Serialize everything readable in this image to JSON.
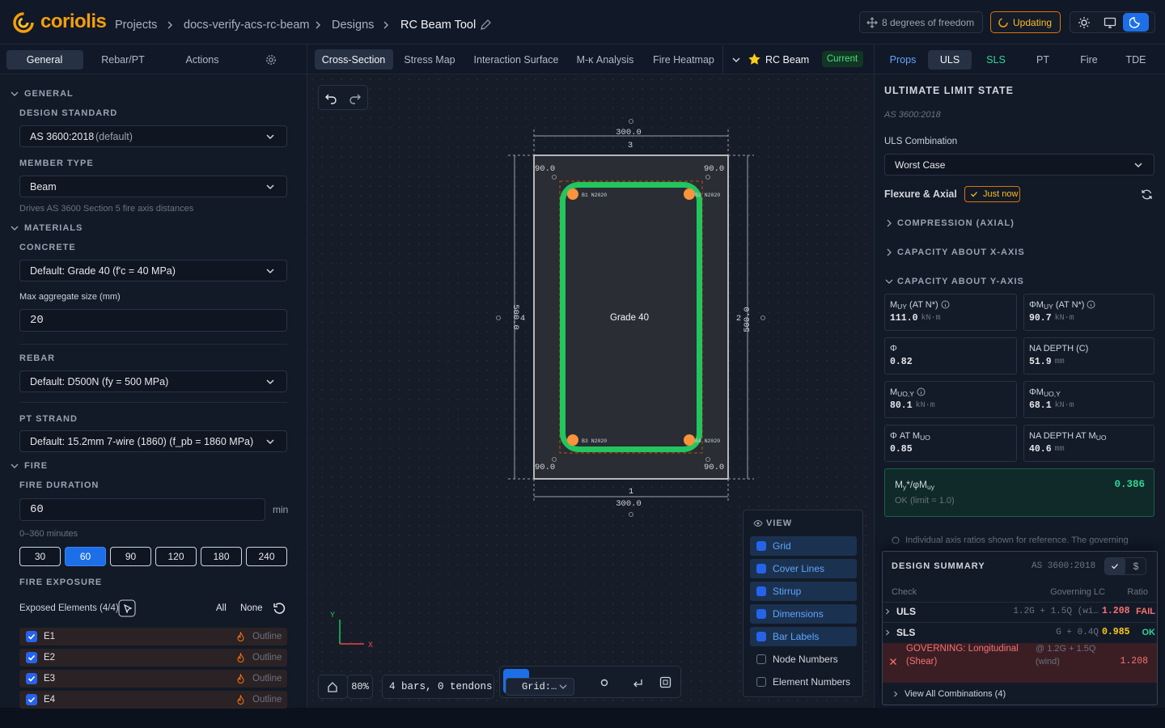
{
  "header": {
    "logo": "coriolis",
    "breadcrumbs": [
      "Projects",
      "docs-verify-acs-rc-beam",
      "Designs",
      "RC Beam Tool"
    ],
    "dof": "8 degrees of freedom",
    "status": "Updating"
  },
  "left": {
    "tabs": [
      "General",
      "Rebar/PT",
      "Actions"
    ],
    "general": {
      "heading": "GENERAL",
      "standard_label": "DESIGN STANDARD",
      "standard": "AS 3600:2018",
      "standard_note": "(default)",
      "member_label": "MEMBER TYPE",
      "member": "Beam",
      "member_hint": "Drives AS 3600 Section 5 fire axis distances"
    },
    "materials": {
      "heading": "MATERIALS",
      "concrete_label": "CONCRETE",
      "concrete": "Default: Grade 40 (f'c = 40 MPa)",
      "aggregate_label": "Max aggregate size (mm)",
      "aggregate": "20",
      "rebar_label": "REBAR",
      "rebar": "Default: D500N (fy = 500 MPa)",
      "pt_label": "PT STRAND",
      "pt": "Default: 15.2mm 7-wire (1860) (f_pb = 1860 MPa)"
    },
    "fire": {
      "heading": "FIRE",
      "duration_label": "FIRE DURATION",
      "duration": "60",
      "unit": "min",
      "range": "0–360 minutes",
      "presets": [
        "30",
        "60",
        "90",
        "120",
        "180",
        "240"
      ],
      "active_preset": 1,
      "exposure_label": "FIRE EXPOSURE",
      "exposed": "Exposed Elements (4/4)",
      "all": "All",
      "none": "None",
      "elements": [
        {
          "name": "E1",
          "mode": "Outline"
        },
        {
          "name": "E2",
          "mode": "Outline"
        },
        {
          "name": "E3",
          "mode": "Outline"
        },
        {
          "name": "E4",
          "mode": "Outline"
        }
      ]
    }
  },
  "center": {
    "tabs": [
      "Cross-Section",
      "Stress Map",
      "Interaction Surface",
      "M-κ Analysis",
      "Fire Heatmap"
    ],
    "design": "RC Beam",
    "design_status": "Current",
    "section": {
      "width": "300.0",
      "depth": "500.0",
      "edges": [
        "1",
        "2",
        "3",
        "4"
      ],
      "cover": "90.0",
      "grade": "Grade 40",
      "bars": [
        "B1 N2020",
        "B2 N2020",
        "B3 N2020",
        "B4 N2020"
      ]
    },
    "axes": {
      "y": "Y",
      "x": "X"
    },
    "zoom": "80%",
    "summary": "4 bars, 0 tendons",
    "grid_mode": "Grid:…",
    "view": {
      "title": "VIEW",
      "options": [
        {
          "label": "Grid",
          "checked": true
        },
        {
          "label": "Cover Lines",
          "checked": true
        },
        {
          "label": "Stirrup",
          "checked": true
        },
        {
          "label": "Dimensions",
          "checked": true
        },
        {
          "label": "Bar Labels",
          "checked": true
        },
        {
          "label": "Node Numbers",
          "checked": false
        },
        {
          "label": "Element Numbers",
          "checked": false
        }
      ]
    }
  },
  "right": {
    "tabs": [
      "Props",
      "ULS",
      "SLS",
      "PT",
      "Fire",
      "TDE"
    ],
    "title": "ULTIMATE LIMIT STATE",
    "standard": "AS 3600:2018",
    "combo_label": "ULS Combination",
    "combo": "Worst Case",
    "flexure": "Flexure & Axial",
    "freshness": "Just now",
    "groups": [
      "COMPRESSION (AXIAL)",
      "CAPACITY ABOUT X-AXIS",
      "CAPACITY ABOUT Y-AXIS"
    ],
    "cards": [
      {
        "label": [
          "M",
          "UY",
          " (AT N*)"
        ],
        "value": "111.0",
        "unit": "kN·m",
        "info": true
      },
      {
        "label": [
          "ΦM",
          "UY",
          " (AT N*)"
        ],
        "value": "90.7",
        "unit": "kN·m",
        "info": true
      },
      {
        "label": [
          "Φ"
        ],
        "value": "0.82"
      },
      {
        "label": [
          "NA DEPTH (C)"
        ],
        "value": "51.9",
        "unit": "mm"
      },
      {
        "label": [
          "M",
          "UO,Y"
        ],
        "value": "80.1",
        "unit": "kN·m",
        "info": true
      },
      {
        "label": [
          "ΦM",
          "UO,Y"
        ],
        "value": "68.1",
        "unit": "kN·m"
      },
      {
        "label": [
          "Φ AT M",
          "UO"
        ],
        "value": "0.85"
      },
      {
        "label": [
          "NA DEPTH AT M",
          "UO"
        ],
        "value": "40.6",
        "unit": "mm"
      }
    ],
    "ratio": {
      "label": [
        "M",
        "y",
        "*/φM",
        "uy"
      ],
      "value": "0.386",
      "status": "OK (limit = 1.0)"
    },
    "note": "Individual axis ratios shown for reference. The governing",
    "summary": {
      "title": "DESIGN SUMMARY",
      "standard": "AS 3600:2018",
      "currency": "$",
      "columns": [
        "Check",
        "Governing LC",
        "Ratio"
      ],
      "rows": [
        {
          "check": "ULS",
          "lc": "1.2G + 1.5Q (wi…",
          "ratio": "1.208",
          "status": "FAIL"
        },
        {
          "check": "SLS",
          "lc": "G + 0.4Q",
          "ratio": "0.985",
          "status": "OK"
        }
      ],
      "governing": {
        "label": "GOVERNING: Longitudinal (Shear)",
        "lc": "@ 1.2G + 1.5Q (wind)",
        "ratio": "1.208"
      },
      "more": "View All Combinations (4)"
    }
  }
}
